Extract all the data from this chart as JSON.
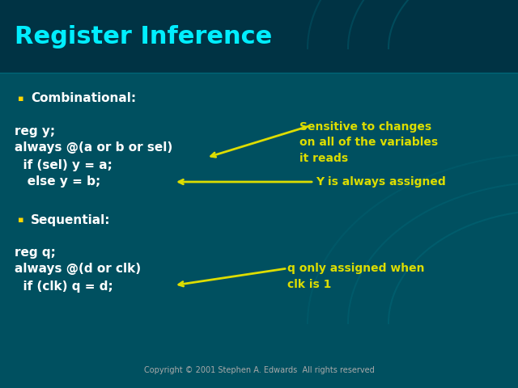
{
  "title": "Register Inference",
  "title_color": "#00EEFF",
  "title_fontsize": 22,
  "bg_color": "#004455",
  "bg_main": "#005060",
  "bullet_color": "#FFD700",
  "code_color": "#FFFFFF",
  "annotation_color": "#DDDD00",
  "copyright_color": "#AAAAAA",
  "bullet1_label": "Combinational:",
  "bullet1_color": "#FFFFFF",
  "code1_line1": "reg y;",
  "code1_line2": "always @(a or b or sel)",
  "code1_line3": "  if (sel) y = a;",
  "code1_line4": "   else y = b;",
  "annotation1": "Sensitive to changes\non all of the variables\nit reads",
  "annotation2": "Y is always assigned",
  "bullet2_label": "Sequential:",
  "bullet2_color": "#FFFFFF",
  "code2_line1": "reg q;",
  "code2_line2": "always @(d or clk)",
  "code2_line3": "  if (clk) q = d;",
  "annotation3": "q only assigned when\nclk is 1",
  "copyright": "Copyright © 2001 Stephen A. Edwards  All rights reserved"
}
